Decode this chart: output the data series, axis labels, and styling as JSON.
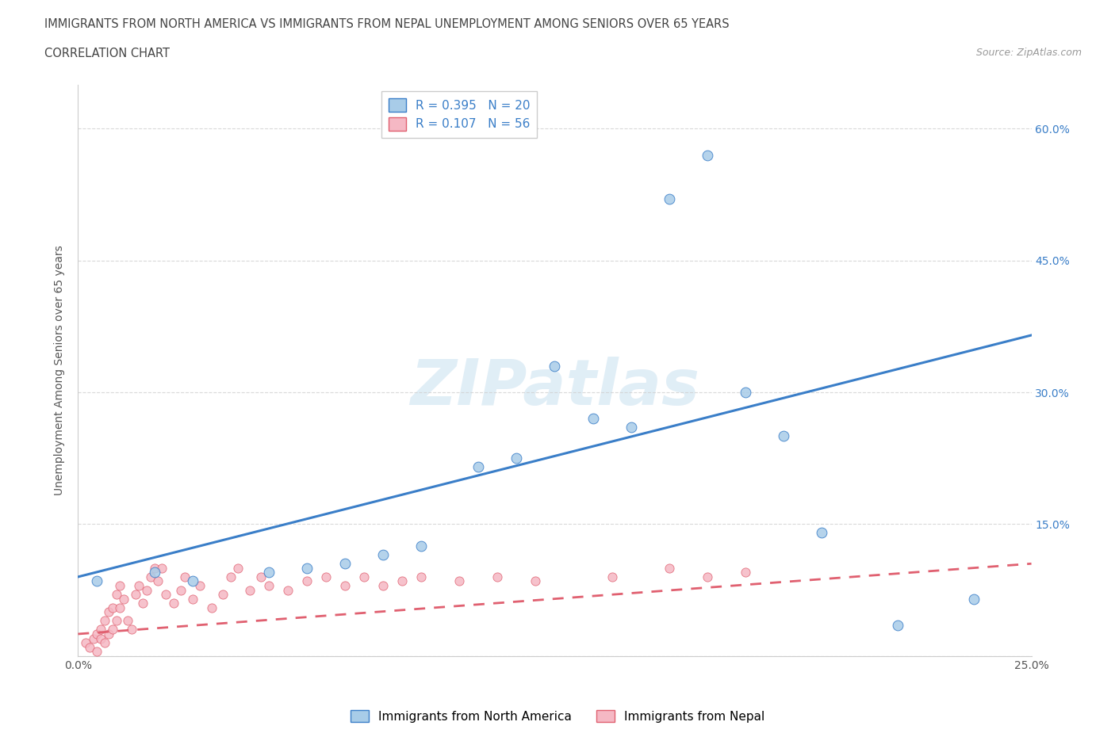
{
  "title_line1": "IMMIGRANTS FROM NORTH AMERICA VS IMMIGRANTS FROM NEPAL UNEMPLOYMENT AMONG SENIORS OVER 65 YEARS",
  "title_line2": "CORRELATION CHART",
  "source": "Source: ZipAtlas.com",
  "ylabel": "Unemployment Among Seniors over 65 years",
  "watermark": "ZIPatlas",
  "legend_bottom": [
    "Immigrants from North America",
    "Immigrants from Nepal"
  ],
  "R_north_america": 0.395,
  "N_north_america": 20,
  "R_nepal": 0.107,
  "N_nepal": 56,
  "xlim": [
    0.0,
    0.25
  ],
  "ylim": [
    0.0,
    0.65
  ],
  "xticks": [
    0.0,
    0.05,
    0.1,
    0.15,
    0.2,
    0.25
  ],
  "yticks": [
    0.0,
    0.15,
    0.3,
    0.45,
    0.6
  ],
  "right_ytick_labels": [
    "",
    "15.0%",
    "30.0%",
    "45.0%",
    "60.0%"
  ],
  "xtick_labels": [
    "0.0%",
    "",
    "",
    "",
    "",
    "25.0%"
  ],
  "color_north_america": "#a8cce8",
  "color_nepal": "#f5b8c4",
  "trendline_na_color": "#3a7ec8",
  "trendline_np_color": "#e06070",
  "background_color": "#ffffff",
  "grid_color": "#d0d0d0",
  "na_trendline_x0": 0.0,
  "na_trendline_y0": 0.09,
  "na_trendline_x1": 0.25,
  "na_trendline_y1": 0.365,
  "np_trendline_x0": 0.0,
  "np_trendline_y0": 0.025,
  "np_trendline_x1": 0.25,
  "np_trendline_y1": 0.105,
  "na_x": [
    0.005,
    0.02,
    0.03,
    0.05,
    0.06,
    0.07,
    0.08,
    0.09,
    0.105,
    0.115,
    0.125,
    0.135,
    0.145,
    0.155,
    0.165,
    0.175,
    0.185,
    0.195,
    0.215,
    0.235
  ],
  "na_y": [
    0.085,
    0.095,
    0.085,
    0.095,
    0.1,
    0.105,
    0.115,
    0.125,
    0.215,
    0.225,
    0.33,
    0.27,
    0.26,
    0.52,
    0.57,
    0.3,
    0.25,
    0.14,
    0.035,
    0.065
  ],
  "np_x": [
    0.002,
    0.003,
    0.004,
    0.005,
    0.005,
    0.006,
    0.006,
    0.007,
    0.007,
    0.008,
    0.008,
    0.009,
    0.009,
    0.01,
    0.01,
    0.011,
    0.011,
    0.012,
    0.013,
    0.014,
    0.015,
    0.016,
    0.017,
    0.018,
    0.019,
    0.02,
    0.021,
    0.022,
    0.023,
    0.025,
    0.027,
    0.028,
    0.03,
    0.032,
    0.035,
    0.038,
    0.04,
    0.042,
    0.045,
    0.048,
    0.05,
    0.055,
    0.06,
    0.065,
    0.07,
    0.075,
    0.08,
    0.085,
    0.09,
    0.1,
    0.11,
    0.12,
    0.14,
    0.155,
    0.165,
    0.175
  ],
  "np_y": [
    0.015,
    0.01,
    0.02,
    0.005,
    0.025,
    0.02,
    0.03,
    0.015,
    0.04,
    0.025,
    0.05,
    0.03,
    0.055,
    0.04,
    0.07,
    0.055,
    0.08,
    0.065,
    0.04,
    0.03,
    0.07,
    0.08,
    0.06,
    0.075,
    0.09,
    0.1,
    0.085,
    0.1,
    0.07,
    0.06,
    0.075,
    0.09,
    0.065,
    0.08,
    0.055,
    0.07,
    0.09,
    0.1,
    0.075,
    0.09,
    0.08,
    0.075,
    0.085,
    0.09,
    0.08,
    0.09,
    0.08,
    0.085,
    0.09,
    0.085,
    0.09,
    0.085,
    0.09,
    0.1,
    0.09,
    0.095
  ]
}
